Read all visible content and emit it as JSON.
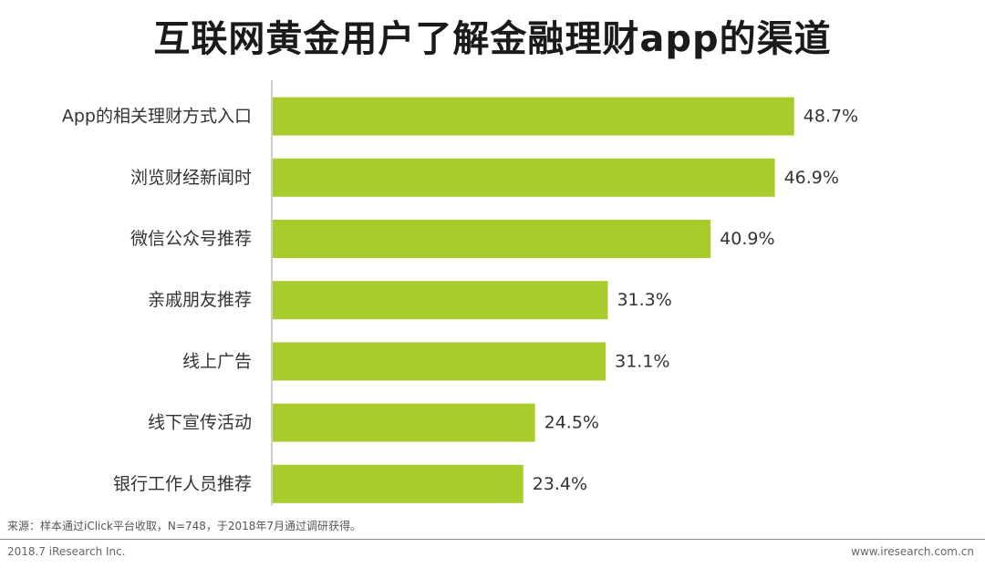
{
  "chart_data": {
    "type": "bar",
    "orientation": "horizontal",
    "title": "互联网黄金用户了解金融理财app的渠道",
    "categories": [
      "App的相关理财方式入口",
      "浏览财经新闻时",
      "微信公众号推荐",
      "亲戚朋友推荐",
      "线上广告",
      "线下宣传活动",
      "银行工作人员推荐"
    ],
    "values": [
      48.7,
      46.9,
      40.9,
      31.3,
      31.1,
      24.5,
      23.4
    ],
    "value_labels": [
      "48.7%",
      "46.9%",
      "40.9%",
      "31.3%",
      "31.1%",
      "24.5%",
      "23.4%"
    ],
    "unit": "%",
    "xlim": [
      0,
      50
    ],
    "bar_color": "#a8cc2c",
    "grid": false
  },
  "footnote": "来源：样本通过iClick平台收取，N=748，于2018年7月通过调研获得。",
  "footer": {
    "left": "2018.7 iResearch Inc.",
    "right": "www.iresearch.com.cn"
  },
  "colors": {
    "axis": "#bdbdbd",
    "text": "#333333"
  }
}
